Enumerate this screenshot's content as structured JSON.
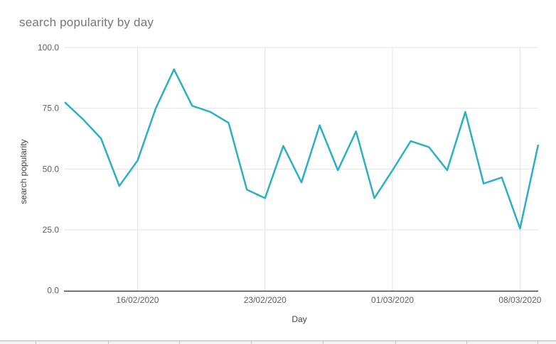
{
  "chart_data": {
    "type": "line",
    "title": "search popularity by day",
    "xlabel": "Day",
    "ylabel": "search popularity",
    "x": [
      "12/02/2020",
      "13/02/2020",
      "14/02/2020",
      "15/02/2020",
      "16/02/2020",
      "17/02/2020",
      "18/02/2020",
      "19/02/2020",
      "20/02/2020",
      "21/02/2020",
      "22/02/2020",
      "23/02/2020",
      "24/02/2020",
      "25/02/2020",
      "26/02/2020",
      "27/02/2020",
      "28/02/2020",
      "29/02/2020",
      "01/03/2020",
      "02/03/2020",
      "03/03/2020",
      "04/03/2020",
      "05/03/2020",
      "06/03/2020",
      "07/03/2020",
      "08/03/2020",
      "09/03/2020"
    ],
    "values": [
      77.5,
      70.5,
      62.5,
      43,
      53.5,
      75,
      91,
      76,
      73.5,
      69,
      41.5,
      38,
      59.5,
      44.5,
      68,
      49.5,
      65.5,
      38,
      49.5,
      61.5,
      59,
      49.5,
      73.5,
      44,
      46.5,
      25.5,
      60
    ],
    "ylim": [
      0,
      100
    ],
    "yticks": [
      0,
      25,
      50,
      75,
      100
    ],
    "ytick_labels": [
      "0.0",
      "25.0",
      "50.0",
      "75.0",
      "100.0"
    ],
    "xticks": [
      {
        "label": "16/02/2020",
        "index": 4
      },
      {
        "label": "23/02/2020",
        "index": 11
      },
      {
        "label": "01/03/2020",
        "index": 18
      },
      {
        "label": "08/03/2020",
        "index": 25
      }
    ],
    "grid": true,
    "legend": "none",
    "colors": {
      "series": "#2BAFC4",
      "grid": "#e3e3e3",
      "axis": "#424242",
      "tick_label": "#616161",
      "title": "#757575",
      "axis_label": "#424242"
    }
  }
}
